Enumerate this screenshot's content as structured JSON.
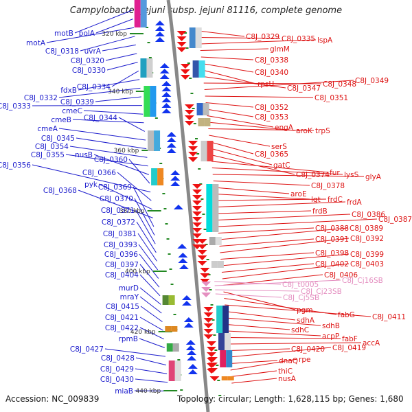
{
  "title": "Campylobacter jejuni subsp. jejuni 81116, complete genome",
  "footer": {
    "accession": "Accession: NC_009839",
    "summary": "Topology: circular; Length: 1,628,115 bp; Genes: 1,680"
  },
  "colors": {
    "left_labels": "#1a1acc",
    "right_labels": "#dd1111",
    "rna_labels": "#e48fc0",
    "backbone": "#888888",
    "tick": "#228822"
  },
  "scale_marks": [
    "320 kbp",
    "340 kbp",
    "360 kbp",
    "380 kbp",
    "400 kbp",
    "420 kbp",
    "440 kbp"
  ],
  "left_genes": [
    "motB",
    "polA",
    "motA",
    "C8J_0318",
    "uvrA",
    "C8J_0320",
    "C8J_0330",
    "C8J_0334",
    "fdxB",
    "C8J_0332",
    "C8J_0339",
    "C8J_0333",
    "cmeC",
    "cmeB",
    "C8J_0344",
    "cmeA",
    "C8J_0345",
    "C8J_0354",
    "C8J_0355",
    "nusB",
    "C8J_0360",
    "C8J_0356",
    "C8J_0366",
    "pyk",
    "C8J_0368",
    "C8J_0369",
    "C8J_0370",
    "C8J_0371",
    "C8J_0372",
    "C8J_0381",
    "C8J_0393",
    "C8J_0396",
    "C8J_0397",
    "C8J_0404",
    "murD",
    "mraY",
    "C8J_0415",
    "C8J_0421",
    "C8J_0422",
    "rpmB",
    "C8J_0427",
    "C8J_0428",
    "C8J_0429",
    "C8J_0430",
    "miaB"
  ],
  "right_genes": [
    "C8J_0329",
    "C8J_0335",
    "lspA",
    "glmM",
    "C8J_0338",
    "C8J_0340",
    "rpsU",
    "C8J_0347",
    "C8J_0348",
    "C8J_0349",
    "C8J_0351",
    "C8J_0352",
    "C8J_0353",
    "engA",
    "aroK",
    "trpS",
    "serS",
    "C8J_0365",
    "gatC",
    "C8J_0374",
    "fur",
    "lysS",
    "glyA",
    "C8J_0378",
    "aroE",
    "lgt",
    "frdC",
    "frdA",
    "frdB",
    "C8J_0386",
    "C8J_0387",
    "C8J_0388",
    "C8J_0389",
    "C8J_0391",
    "C8J_0392",
    "C8J_0398",
    "C8J_0399",
    "C8J_0402",
    "C8J_0403",
    "C8J_0406",
    "pgm",
    "fabG",
    "C8J_0411",
    "sdhA",
    "sdhB",
    "sdhC",
    "acpP",
    "fabF",
    "accA",
    "C8J_0420",
    "C8J_0419",
    "dnaQ",
    "rpe",
    "thiC",
    "nusA"
  ],
  "rna_genes": [
    "C8J_t0005",
    "C8J_Cj16SB",
    "C8J_Cj23SB",
    "C8J_Cj5SB"
  ]
}
